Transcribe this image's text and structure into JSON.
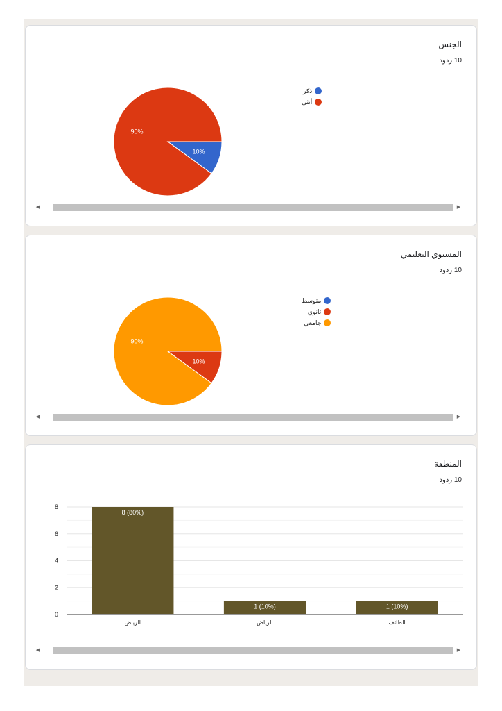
{
  "cards": [
    {
      "title": "الجنس",
      "responses": "10 ردود",
      "chart_data": {
        "type": "pie",
        "legend_position": "right",
        "slices": [
          {
            "label": "ذكر",
            "value": 10,
            "pct_label": "10%",
            "color": "#3366cc"
          },
          {
            "label": "أنثى",
            "value": 90,
            "pct_label": "90%",
            "color": "#dc3912"
          }
        ]
      }
    },
    {
      "title": "المستوي التعليمي",
      "responses": "10 ردود",
      "chart_data": {
        "type": "pie",
        "legend_position": "right",
        "slices": [
          {
            "label": "متوسط",
            "value": 0,
            "pct_label": "",
            "color": "#3366cc"
          },
          {
            "label": "ثانوي",
            "value": 10,
            "pct_label": "10%",
            "color": "#dc3912"
          },
          {
            "label": "جامعي",
            "value": 90,
            "pct_label": "90%",
            "color": "#ff9900"
          }
        ]
      }
    },
    {
      "title": "المنطقة",
      "responses": "10 ردود",
      "chart_data": {
        "type": "bar",
        "categories": [
          "الرياض",
          "الرياض ",
          "الطائف"
        ],
        "values": [
          8,
          1,
          1
        ],
        "data_labels": [
          "8 (80%)",
          "1 (10%)",
          "1 (10%)"
        ],
        "ylim": [
          0,
          8
        ],
        "yticks": [
          0,
          2,
          4,
          6,
          8
        ],
        "bar_color": "#625629",
        "grid": true
      }
    }
  ]
}
